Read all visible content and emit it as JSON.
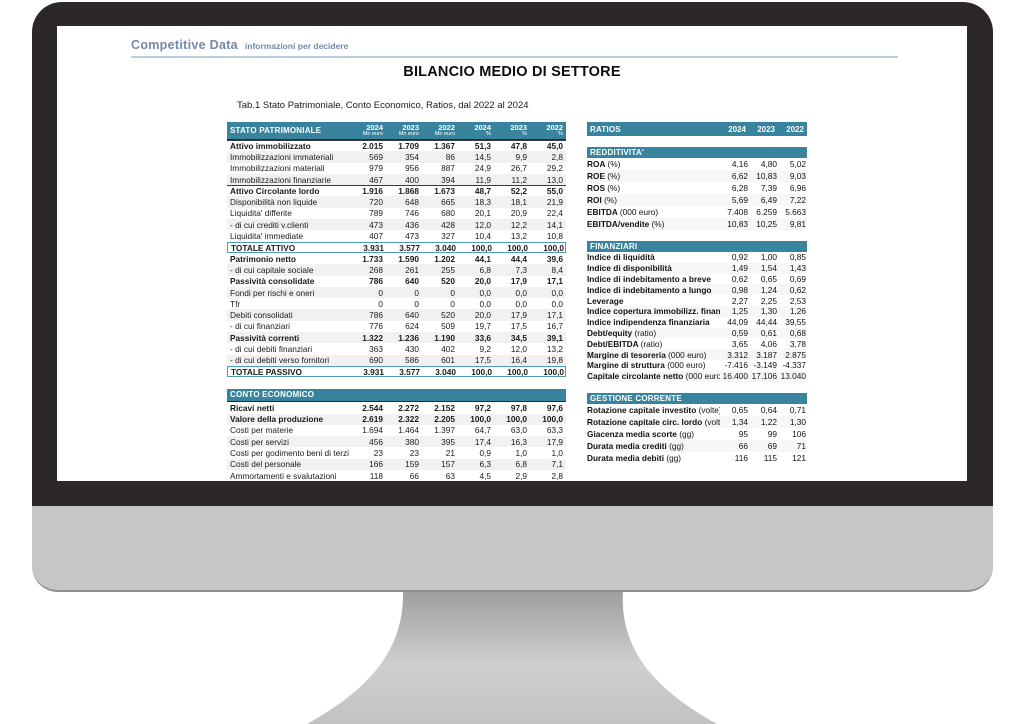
{
  "colors": {
    "accent_teal": "#38839e",
    "brand_blue": "#7288ad",
    "rule_blue": "#b9cfe0",
    "bezel_dark": "#2b2827",
    "chin_gray": "#c6c7c5"
  },
  "brand": {
    "name": "Competitive Data",
    "tagline": "informazioni per decidere"
  },
  "title": "BILANCIO MEDIO DI SETTORE",
  "subtitle": "Tab.1 Stato Patrimoniale, Conto Economico, Ratios, dal 2022 al 2024",
  "stato_patrimoniale": {
    "title": "STATO PATRIMONIALE",
    "columns": [
      {
        "year": "2024",
        "unit": "Mn euro"
      },
      {
        "year": "2023",
        "unit": "Mn euro"
      },
      {
        "year": "2022",
        "unit": "Mn euro"
      },
      {
        "year": "2024",
        "unit": "%"
      },
      {
        "year": "2023",
        "unit": "%"
      },
      {
        "year": "2022",
        "unit": "%"
      }
    ],
    "rows": [
      {
        "label": "Attivo immobilizzato",
        "style": "bold",
        "topline": true,
        "values": [
          "2.015",
          "1.709",
          "1.367",
          "51,3",
          "47,8",
          "45,0"
        ]
      },
      {
        "label": "Immobilizzazioni immateriali",
        "style": "normal",
        "values": [
          "569",
          "354",
          "86",
          "14,5",
          "9,9",
          "2,8"
        ]
      },
      {
        "label": "Immobilizzazioni materiali",
        "style": "normal",
        "values": [
          "979",
          "956",
          "887",
          "24,9",
          "26,7",
          "29,2"
        ]
      },
      {
        "label": "Immobilizzazioni finanziarie",
        "style": "normal",
        "values": [
          "467",
          "400",
          "394",
          "11,9",
          "11,2",
          "13,0"
        ]
      },
      {
        "label": "Attivo Circolante  lordo",
        "style": "bold",
        "topline": true,
        "values": [
          "1.916",
          "1.868",
          "1.673",
          "48,7",
          "52,2",
          "55,0"
        ]
      },
      {
        "label": "Disponibilità non liquide",
        "style": "normal",
        "values": [
          "720",
          "648",
          "665",
          "18,3",
          "18,1",
          "21,9"
        ]
      },
      {
        "label": "Liquidita'  differite",
        "style": "normal",
        "values": [
          "789",
          "746",
          "680",
          "20,1",
          "20,9",
          "22,4"
        ]
      },
      {
        "label": " - di cui crediti v.clienti",
        "style": "normal",
        "values": [
          "473",
          "436",
          "428",
          "12,0",
          "12,2",
          "14,1"
        ]
      },
      {
        "label": "Liquidita'  immediate",
        "style": "normal",
        "values": [
          "407",
          "473",
          "327",
          "10,4",
          "13,2",
          "10,8"
        ]
      },
      {
        "label": "TOTALE ATTIVO",
        "style": "total",
        "values": [
          "3.931",
          "3.577",
          "3.040",
          "100,0",
          "100,0",
          "100,0"
        ]
      },
      {
        "label": "Patrimonio netto",
        "style": "bold",
        "values": [
          "1.733",
          "1.590",
          "1.202",
          "44,1",
          "44,4",
          "39,6"
        ]
      },
      {
        "label": " - di cui capitale sociale",
        "style": "normal",
        "values": [
          "268",
          "261",
          "255",
          "6,8",
          "7,3",
          "8,4"
        ]
      },
      {
        "label": "Passività consolidate",
        "style": "bold",
        "values": [
          "786",
          "640",
          "520",
          "20,0",
          "17,9",
          "17,1"
        ]
      },
      {
        "label": "Fondi per rischi e oneri",
        "style": "normal",
        "values": [
          "0",
          "0",
          "0",
          "0,0",
          "0,0",
          "0,0"
        ]
      },
      {
        "label": "Tfr",
        "style": "normal",
        "values": [
          "0",
          "0",
          "0",
          "0,0",
          "0,0",
          "0,0"
        ]
      },
      {
        "label": "Debiti consolidati",
        "style": "normal",
        "values": [
          "786",
          "640",
          "520",
          "20,0",
          "17,9",
          "17,1"
        ]
      },
      {
        "label": " - di cui finanziari",
        "style": "normal",
        "values": [
          "776",
          "624",
          "509",
          "19,7",
          "17,5",
          "16,7"
        ]
      },
      {
        "label": "Passività correnti",
        "style": "bold",
        "values": [
          "1.322",
          "1.236",
          "1.190",
          "33,6",
          "34,5",
          "39,1"
        ]
      },
      {
        "label": " - di cui debiti finanziari",
        "style": "normal",
        "values": [
          "363",
          "430",
          "402",
          "9,2",
          "12,0",
          "13,2"
        ]
      },
      {
        "label": " - di cui debiti verso fornitori",
        "style": "normal",
        "values": [
          "690",
          "586",
          "601",
          "17,5",
          "16,4",
          "19,8"
        ]
      },
      {
        "label": "TOTALE PASSIVO",
        "style": "total",
        "values": [
          "3.931",
          "3.577",
          "3.040",
          "100,0",
          "100,0",
          "100,0"
        ]
      }
    ]
  },
  "conto_economico": {
    "title": "CONTO ECONOMICO",
    "rows": [
      {
        "label": "Ricavi netti",
        "style": "bold",
        "values": [
          "2.544",
          "2.272",
          "2.152",
          "97,2",
          "97,8",
          "97,6"
        ]
      },
      {
        "label": "Valore della produzione",
        "style": "bold",
        "values": [
          "2.619",
          "2.322",
          "2.205",
          "100,0",
          "100,0",
          "100,0"
        ]
      },
      {
        "label": "Costi per materie",
        "style": "normal",
        "values": [
          "1.694",
          "1.464",
          "1.397",
          "64,7",
          "63,0",
          "63,3"
        ]
      },
      {
        "label": "Costi per servizi",
        "style": "normal",
        "values": [
          "456",
          "380",
          "395",
          "17,4",
          "16,3",
          "17,9"
        ]
      },
      {
        "label": "Costi per godimento beni di terzi",
        "style": "normal",
        "values": [
          "23",
          "23",
          "21",
          "0,9",
          "1,0",
          "1,0"
        ]
      },
      {
        "label": "Costi del personale",
        "style": "normal",
        "values": [
          "166",
          "159",
          "157",
          "6,3",
          "6,8",
          "7,1"
        ]
      },
      {
        "label": "Ammortamenti e svalutazioni",
        "style": "normal",
        "values": [
          "118",
          "66",
          "63",
          "4,5",
          "2,9",
          "2,8"
        ]
      }
    ]
  },
  "ratios": {
    "title": "RATIOS",
    "years": [
      "2024",
      "2023",
      "2022"
    ],
    "sections": [
      {
        "label": "REDDITIVITA'",
        "tight": false,
        "rows": [
          {
            "label": "ROA",
            "unit": "(%)",
            "values": [
              "4,16",
              "4,80",
              "5,02"
            ]
          },
          {
            "label": "ROE",
            "unit": "(%)",
            "values": [
              "6,62",
              "10,83",
              "9,03"
            ]
          },
          {
            "label": "ROS",
            "unit": "(%)",
            "values": [
              "6,28",
              "7,39",
              "6,96"
            ]
          },
          {
            "label": "ROI",
            "unit": "(%)",
            "values": [
              "5,69",
              "6,49",
              "7,22"
            ]
          },
          {
            "label": "EBITDA",
            "unit": "(000 euro)",
            "values": [
              "7.408",
              "6.259",
              "5.663"
            ]
          },
          {
            "label": "EBITDA/vendite",
            "unit": "(%)",
            "values": [
              "10,83",
              "10,25",
              "9,81"
            ]
          }
        ]
      },
      {
        "label": "FINANZIARI",
        "tight": true,
        "rows": [
          {
            "label": "Indice di liquidità",
            "unit": "",
            "values": [
              "0,92",
              "1,00",
              "0,85"
            ]
          },
          {
            "label": "Indice di disponibilità",
            "unit": "",
            "values": [
              "1,49",
              "1,54",
              "1,43"
            ]
          },
          {
            "label": "Indice di indebitamento a breve",
            "unit": "",
            "values": [
              "0,62",
              "0,65",
              "0,69"
            ]
          },
          {
            "label": "Indice di indebitamento a lungo",
            "unit": "",
            "values": [
              "0,98",
              "1,24",
              "0,62"
            ]
          },
          {
            "label": "Leverage",
            "unit": "",
            "values": [
              "2,27",
              "2,25",
              "2,53"
            ]
          },
          {
            "label": "Indice copertura immobilizz. finanziarie",
            "unit": "",
            "values": [
              "1,25",
              "1,30",
              "1,26"
            ]
          },
          {
            "label": "Indice indipendenza finanziaria",
            "unit": "",
            "values": [
              "44,09",
              "44,44",
              "39,55"
            ]
          },
          {
            "label": "Debt/equity",
            "unit": "(ratio)",
            "values": [
              "0,59",
              "0,61",
              "0,68"
            ]
          },
          {
            "label": "Debt/EBITDA",
            "unit": "(ratio)",
            "values": [
              "3,65",
              "4,06",
              "3,78"
            ]
          },
          {
            "label": "Margine di tesoreria",
            "unit": "(000 euro)",
            "values": [
              "3.312",
              "3.187",
              "2.875"
            ]
          },
          {
            "label": "Margine di struttura",
            "unit": "(000 euro)",
            "values": [
              "-7.416",
              "-3.149",
              "-4.337"
            ]
          },
          {
            "label": "Capitale circolante netto",
            "unit": "(000 euro)",
            "values": [
              "16.400",
              "17.106",
              "13.040"
            ]
          }
        ]
      },
      {
        "label": "GESTIONE CORRENTE",
        "tight": false,
        "rows": [
          {
            "label": "Rotazione capitale investito",
            "unit": "(volte)",
            "values": [
              "0,65",
              "0,64",
              "0,71"
            ]
          },
          {
            "label": "Rotazione capitale circ. lordo",
            "unit": "(volte)",
            "values": [
              "1,34",
              "1,22",
              "1,30"
            ]
          },
          {
            "label": "Giacenza media scorte",
            "unit": "(gg)",
            "values": [
              "95",
              "99",
              "106"
            ]
          },
          {
            "label": "Durata media crediti",
            "unit": "(gg)",
            "values": [
              "66",
              "69",
              "71"
            ]
          },
          {
            "label": "Durata media debiti",
            "unit": "(gg)",
            "values": [
              "116",
              "115",
              "121"
            ]
          }
        ]
      }
    ]
  }
}
